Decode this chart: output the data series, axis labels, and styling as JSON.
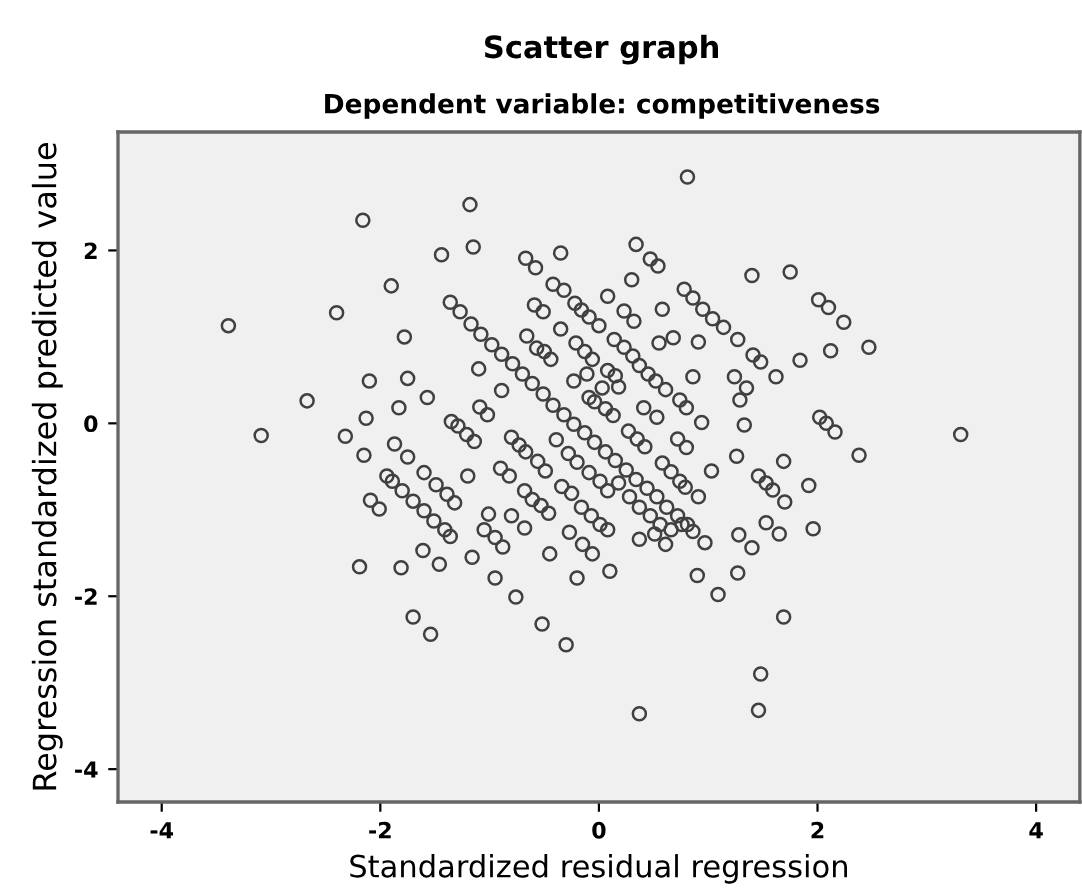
{
  "chart_data": {
    "type": "scatter",
    "title": "Scatter graph",
    "subtitle": "Dependent variable: competitiveness",
    "xlabel": "Standardized residual regression",
    "ylabel": "Regression standardized predicted value",
    "xlim": [
      -4.4,
      4.4
    ],
    "ylim": [
      -4.38,
      3.37
    ],
    "xticks": [
      -4,
      -2,
      0,
      2,
      4
    ],
    "yticks": [
      -4,
      -2,
      0,
      2
    ],
    "grid": false,
    "marker": "circle",
    "series": [
      {
        "color": "#404040",
        "x": [
          -3.39,
          -3.09,
          -2.67,
          -2.4,
          -2.32,
          -2.16,
          -2.1,
          -2.13,
          -2.15,
          -2.09,
          -2.01,
          -2.19,
          -1.9,
          -1.87,
          -1.83,
          -1.75,
          -1.78,
          -1.75,
          -1.94,
          -1.89,
          -1.8,
          -1.7,
          -1.6,
          -1.51,
          -1.41,
          -1.36,
          -1.81,
          -1.7,
          -1.54,
          -1.61,
          -1.46,
          -1.57,
          -1.6,
          -1.49,
          -1.39,
          -1.32,
          -1.44,
          -1.18,
          -1.15,
          -1.36,
          -1.35,
          -1.29,
          -1.21,
          -1.14,
          -1.2,
          -1.16,
          -1.1,
          -1.09,
          -1.02,
          -1.01,
          -1.05,
          -0.95,
          -0.88,
          -0.95,
          -0.76,
          -0.52,
          -0.3,
          -0.45,
          -0.2,
          -0.89,
          -0.9,
          -0.82,
          -0.8,
          -0.73,
          -0.8,
          -0.68,
          -0.68,
          -0.61,
          -0.53,
          -0.46,
          -0.67,
          -0.56,
          -0.49,
          -0.67,
          -0.58,
          -0.59,
          -0.51,
          -0.66,
          -0.57,
          -0.5,
          -0.44,
          -0.35,
          -0.42,
          -0.32,
          -0.35,
          -0.22,
          -0.16,
          -0.09,
          0.0,
          -0.23,
          -0.21,
          -0.13,
          -0.06,
          -0.11,
          0.03,
          0.08,
          0.15,
          -0.09,
          -0.04,
          0.06,
          0.13,
          -0.39,
          -0.28,
          -0.2,
          -0.09,
          0.01,
          0.08,
          -0.34,
          -0.25,
          -0.16,
          -0.07,
          0.01,
          0.08,
          -0.27,
          -0.15,
          -0.06,
          0.1,
          0.08,
          0.23,
          0.32,
          0.14,
          0.23,
          0.31,
          0.37,
          0.45,
          0.52,
          0.61,
          0.3,
          0.34,
          0.47,
          0.54,
          0.58,
          0.68,
          0.55,
          0.18,
          0.27,
          0.35,
          0.42,
          0.41,
          0.53,
          0.58,
          0.66,
          0.74,
          0.79,
          0.91,
          0.74,
          0.8,
          0.94,
          0.86,
          0.91,
          0.81,
          0.78,
          0.86,
          0.95,
          1.04,
          1.14,
          0.72,
          0.8,
          0.18,
          0.28,
          0.37,
          0.47,
          0.56,
          0.66,
          0.76,
          0.86,
          0.37,
          0.51,
          0.61,
          0.97,
          0.9,
          1.09,
          0.37,
          1.03,
          1.26,
          1.27,
          1.24,
          1.29,
          1.35,
          1.33,
          1.4,
          1.41,
          1.48,
          1.62,
          1.28,
          1.4,
          1.27,
          1.46,
          1.53,
          1.59,
          1.53,
          1.65,
          1.7,
          1.69,
          1.69,
          1.48,
          1.46,
          1.75,
          1.84,
          1.92,
          1.96,
          2.01,
          2.1,
          2.24,
          2.12,
          2.02,
          2.08,
          2.16,
          2.38,
          2.47,
          3.31,
          -1.27,
          -1.17,
          -1.08,
          -0.98,
          -0.89,
          -0.79,
          -0.7,
          -0.61,
          -0.51,
          -0.42,
          -0.32,
          -0.23,
          -0.13,
          -0.04,
          0.06,
          0.15,
          0.25,
          0.34,
          0.44,
          0.53,
          0.62,
          0.72,
          0.81
        ],
        "values": [
          1.13,
          -0.14,
          0.26,
          1.28,
          -0.15,
          2.35,
          0.49,
          0.06,
          -0.37,
          -0.89,
          -0.99,
          -1.66,
          1.59,
          -0.24,
          0.18,
          0.52,
          1.0,
          -0.39,
          -0.61,
          -0.67,
          -0.78,
          -0.9,
          -1.01,
          -1.13,
          -1.23,
          -1.31,
          -1.67,
          -2.24,
          -2.44,
          -1.47,
          -1.63,
          0.3,
          -0.57,
          -0.71,
          -0.82,
          -0.92,
          1.95,
          2.53,
          2.04,
          1.4,
          0.02,
          -0.03,
          -0.13,
          -0.21,
          -0.61,
          -1.55,
          0.63,
          0.19,
          0.1,
          -1.05,
          -1.23,
          -1.32,
          -1.43,
          -1.79,
          -2.01,
          -2.32,
          -2.56,
          -1.51,
          -1.79,
          0.38,
          -0.52,
          -0.61,
          -0.16,
          -0.25,
          -1.07,
          -1.21,
          -0.78,
          -0.88,
          -0.95,
          -1.04,
          -0.33,
          -0.44,
          -0.55,
          1.91,
          1.8,
          1.37,
          1.29,
          1.01,
          0.87,
          0.83,
          0.74,
          1.97,
          1.61,
          1.54,
          1.09,
          1.39,
          1.31,
          1.23,
          1.13,
          0.49,
          0.93,
          0.83,
          0.74,
          0.57,
          0.41,
          0.61,
          0.55,
          0.3,
          0.25,
          0.17,
          0.09,
          -0.19,
          -0.35,
          -0.45,
          -0.57,
          -0.67,
          -0.78,
          -0.73,
          -0.81,
          -0.97,
          -1.07,
          -1.17,
          -1.23,
          -1.26,
          -1.4,
          -1.51,
          -1.71,
          1.47,
          1.3,
          1.18,
          0.97,
          0.88,
          0.78,
          0.67,
          0.57,
          0.49,
          0.39,
          1.66,
          2.07,
          1.9,
          1.82,
          1.32,
          0.99,
          0.93,
          0.42,
          -0.09,
          -0.18,
          -0.27,
          0.18,
          0.07,
          -0.46,
          -0.56,
          -0.67,
          -0.74,
          -0.85,
          0.27,
          0.18,
          0.01,
          0.54,
          0.94,
          2.85,
          1.55,
          1.45,
          1.32,
          1.21,
          1.11,
          -0.18,
          -0.28,
          -0.69,
          -0.85,
          -0.97,
          -1.07,
          -1.17,
          -1.23,
          -1.17,
          -1.25,
          -1.34,
          -1.28,
          -1.4,
          -1.38,
          -1.76,
          -1.98,
          -3.36,
          -0.55,
          -0.38,
          0.97,
          0.54,
          0.27,
          0.41,
          -0.02,
          1.71,
          0.79,
          0.71,
          0.54,
          -1.29,
          -1.44,
          -1.73,
          -0.61,
          -0.69,
          -0.77,
          -1.15,
          -1.28,
          -0.91,
          -0.44,
          -2.24,
          -2.9,
          -3.32,
          1.75,
          0.73,
          -0.72,
          -1.22,
          1.43,
          1.34,
          1.17,
          0.84,
          0.07,
          0.0,
          -0.1,
          -0.37,
          0.88,
          -0.13,
          1.29,
          1.15,
          1.03,
          0.91,
          0.8,
          0.69,
          0.57,
          0.46,
          0.34,
          0.21,
          0.1,
          -0.01,
          -0.11,
          -0.22,
          -0.33,
          -0.43,
          -0.54,
          -0.65,
          -0.75,
          -0.85,
          -0.97,
          -1.07,
          -1.17
        ]
      }
    ]
  }
}
